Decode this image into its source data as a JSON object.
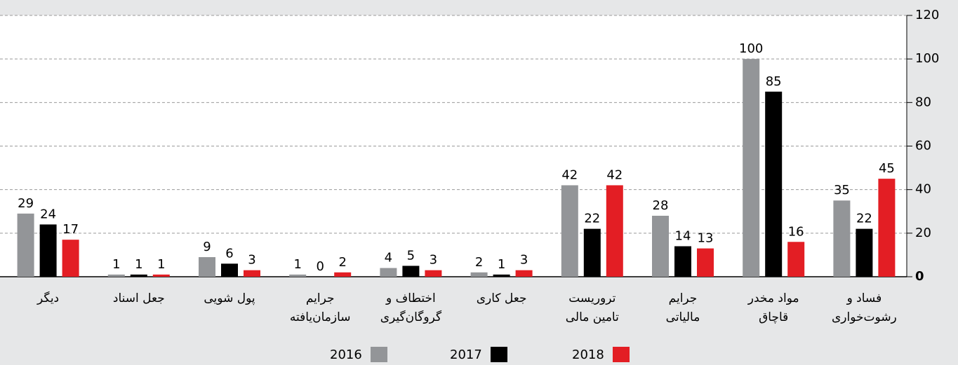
{
  "chart_data": {
    "type": "bar",
    "categories": [
      [
        "دیگر"
      ],
      [
        "جعل اسناد"
      ],
      [
        "پول شویی"
      ],
      [
        "جرایم",
        "سازمان‌یافته"
      ],
      [
        "اختطاف و",
        "گروگان‌گیری"
      ],
      [
        "جعل کاری"
      ],
      [
        "تروریست",
        "تامین مالی"
      ],
      [
        "جرایم",
        "مالیاتی"
      ],
      [
        "مواد مخدر",
        "قاچاق"
      ],
      [
        "فساد و",
        "رشوت‌خواری"
      ]
    ],
    "series": [
      {
        "name": "2016",
        "color": "#939598",
        "values": [
          29,
          1,
          9,
          1,
          4,
          2,
          42,
          28,
          100,
          35
        ]
      },
      {
        "name": "2017",
        "color": "#000000",
        "values": [
          24,
          1,
          6,
          0,
          5,
          1,
          22,
          14,
          85,
          22
        ]
      },
      {
        "name": "2018",
        "color": "#e31e24",
        "values": [
          17,
          1,
          3,
          2,
          3,
          3,
          42,
          13,
          16,
          45
        ]
      }
    ],
    "ylim": [
      0,
      120
    ],
    "yticks": [
      0,
      20,
      40,
      60,
      80,
      100,
      120
    ],
    "grid": true,
    "yaxis_side": "right",
    "legend": "bottom"
  }
}
